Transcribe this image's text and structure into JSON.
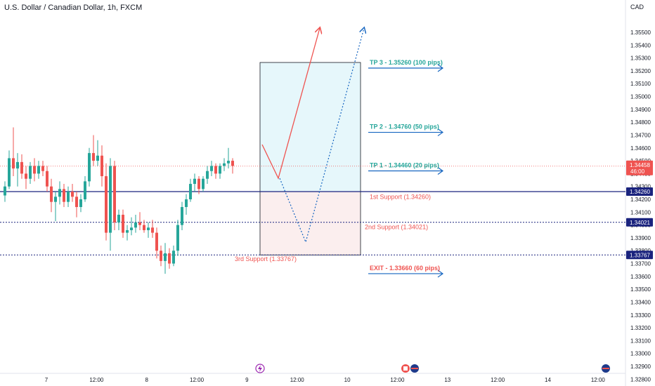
{
  "header": {
    "title": "U.S. Dollar / Canadian Dollar, 1h, FXCM",
    "currency": "CAD"
  },
  "chart_data": {
    "type": "candlestick",
    "ylim": [
      1.3282,
      1.3558
    ],
    "y_ticks": [
      "1.35500",
      "1.35400",
      "1.35300",
      "1.35200",
      "1.35100",
      "1.35000",
      "1.34900",
      "1.34800",
      "1.34700",
      "1.34600",
      "1.34500",
      "1.34400",
      "1.34300",
      "1.34200",
      "1.34100",
      "1.34000",
      "1.33900",
      "1.33800",
      "1.33700",
      "1.33600",
      "1.33500",
      "1.33400",
      "1.33300",
      "1.33200",
      "1.33100",
      "1.33000",
      "1.32900",
      "1.32800"
    ],
    "x_ticks": [
      {
        "label": "7",
        "pos": 0
      },
      {
        "label": "12:00",
        "pos": 12
      },
      {
        "label": "8",
        "pos": 24
      },
      {
        "label": "12:00",
        "pos": 36
      },
      {
        "label": "9",
        "pos": 48
      },
      {
        "label": "12:00",
        "pos": 60
      },
      {
        "label": "10",
        "pos": 72
      },
      {
        "label": "12:00",
        "pos": 84
      },
      {
        "label": "13",
        "pos": 96
      },
      {
        "label": "12:00",
        "pos": 108
      },
      {
        "label": "14",
        "pos": 120
      },
      {
        "label": "12:00",
        "pos": 132
      }
    ],
    "candles": [
      [
        1.3423,
        1.3434,
        1.3418,
        1.343
      ],
      [
        1.343,
        1.3458,
        1.3428,
        1.3452
      ],
      [
        1.3452,
        1.3476,
        1.3438,
        1.3444
      ],
      [
        1.3444,
        1.3456,
        1.343,
        1.3449
      ],
      [
        1.3449,
        1.3455,
        1.3436,
        1.344
      ],
      [
        1.344,
        1.3446,
        1.3428,
        1.3436
      ],
      [
        1.3436,
        1.3449,
        1.3432,
        1.3446
      ],
      [
        1.3446,
        1.3452,
        1.3434,
        1.344
      ],
      [
        1.344,
        1.345,
        1.3436,
        1.3446
      ],
      [
        1.3446,
        1.345,
        1.3438,
        1.3442
      ],
      [
        1.3442,
        1.3446,
        1.3426,
        1.343
      ],
      [
        1.343,
        1.3436,
        1.341,
        1.3418
      ],
      [
        1.3418,
        1.3426,
        1.3403,
        1.3422
      ],
      [
        1.3422,
        1.3434,
        1.3416,
        1.3428
      ],
      [
        1.3428,
        1.3432,
        1.3414,
        1.3418
      ],
      [
        1.3418,
        1.343,
        1.3414,
        1.3426
      ],
      [
        1.3426,
        1.3432,
        1.3418,
        1.3422
      ],
      [
        1.3422,
        1.3426,
        1.3406,
        1.3414
      ],
      [
        1.3414,
        1.3424,
        1.341,
        1.342
      ],
      [
        1.342,
        1.3438,
        1.3418,
        1.3434
      ],
      [
        1.3434,
        1.346,
        1.343,
        1.3456
      ],
      [
        1.3456,
        1.347,
        1.3446,
        1.345
      ],
      [
        1.345,
        1.3466,
        1.3446,
        1.3454
      ],
      [
        1.3454,
        1.3462,
        1.343,
        1.3438
      ],
      [
        1.3438,
        1.3448,
        1.3388,
        1.3394
      ],
      [
        1.3394,
        1.3452,
        1.338,
        1.3446
      ],
      [
        1.3446,
        1.345,
        1.3396,
        1.3402
      ],
      [
        1.3402,
        1.3412,
        1.3396,
        1.3408
      ],
      [
        1.3408,
        1.3412,
        1.339,
        1.3394
      ],
      [
        1.3394,
        1.34,
        1.3388,
        1.3396
      ],
      [
        1.3396,
        1.3406,
        1.3392,
        1.3398
      ],
      [
        1.3398,
        1.3408,
        1.3394,
        1.3402
      ],
      [
        1.3402,
        1.341,
        1.3396,
        1.34
      ],
      [
        1.34,
        1.3404,
        1.3394,
        1.3396
      ],
      [
        1.3396,
        1.3402,
        1.339,
        1.3398
      ],
      [
        1.3398,
        1.3404,
        1.339,
        1.3394
      ],
      [
        1.3394,
        1.3398,
        1.3374,
        1.338
      ],
      [
        1.338,
        1.3384,
        1.3368,
        1.3372
      ],
      [
        1.3372,
        1.3386,
        1.3362,
        1.3378
      ],
      [
        1.3378,
        1.3382,
        1.3366,
        1.337
      ],
      [
        1.337,
        1.3384,
        1.3368,
        1.338
      ],
      [
        1.338,
        1.3404,
        1.3376,
        1.34
      ],
      [
        1.34,
        1.3418,
        1.3396,
        1.3414
      ],
      [
        1.3414,
        1.3424,
        1.3408,
        1.342
      ],
      [
        1.342,
        1.3436,
        1.3418,
        1.3432
      ],
      [
        1.3432,
        1.344,
        1.3426,
        1.3436
      ],
      [
        1.3436,
        1.3438,
        1.3424,
        1.3428
      ],
      [
        1.3428,
        1.3438,
        1.3426,
        1.3436
      ],
      [
        1.3436,
        1.3446,
        1.3432,
        1.3442
      ],
      [
        1.3442,
        1.345,
        1.3438,
        1.3446
      ],
      [
        1.3446,
        1.3448,
        1.3436,
        1.344
      ],
      [
        1.344,
        1.3448,
        1.3436,
        1.3446
      ],
      [
        1.3446,
        1.3452,
        1.3442,
        1.3448
      ],
      [
        1.3448,
        1.346,
        1.3444,
        1.345
      ],
      [
        1.345,
        1.3452,
        1.344,
        1.3446
      ]
    ],
    "current_price": {
      "label": "1.34458",
      "countdown": "46:00",
      "value": 1.34458
    },
    "levels": [
      {
        "value": 1.3426,
        "label": "1.34260",
        "style": "solid",
        "color": "#1a237e"
      },
      {
        "value": 1.34021,
        "label": "1.34021",
        "style": "dotted",
        "color": "#1a237e"
      },
      {
        "value": 1.33767,
        "label": "1.33767",
        "style": "dotted",
        "color": "#1a237e"
      }
    ],
    "annotations": [
      {
        "text": "TP 3 - 1.35260 (100 pips)",
        "color": "#26a69a",
        "price": 1.35265
      },
      {
        "text": "TP 2 - 1.34760 (50 pips)",
        "color": "#26a69a",
        "price": 1.34765
      },
      {
        "text": "TP 1 - 1.34460 (20 pips)",
        "color": "#26a69a",
        "price": 1.34465
      },
      {
        "text": "1st Support (1.34260)",
        "color": "#ef5350",
        "price": 1.3422
      },
      {
        "text": "2nd Support (1.34021)",
        "color": "#ef5350",
        "price": 1.33985
      },
      {
        "text": "3rd Support (1.33767)",
        "color": "#ef5350",
        "price": 1.33735
      },
      {
        "text": "EXIT - 1.33660 (60 pips)",
        "color": "#ef5350",
        "price": 1.33665
      }
    ],
    "colors": {
      "up": "#26a69a",
      "down": "#ef5350",
      "level": "#1a237e",
      "arrow": "#1565c0",
      "profit_zone": "#e6f7fb",
      "loss_zone": "#fbeeee"
    }
  }
}
